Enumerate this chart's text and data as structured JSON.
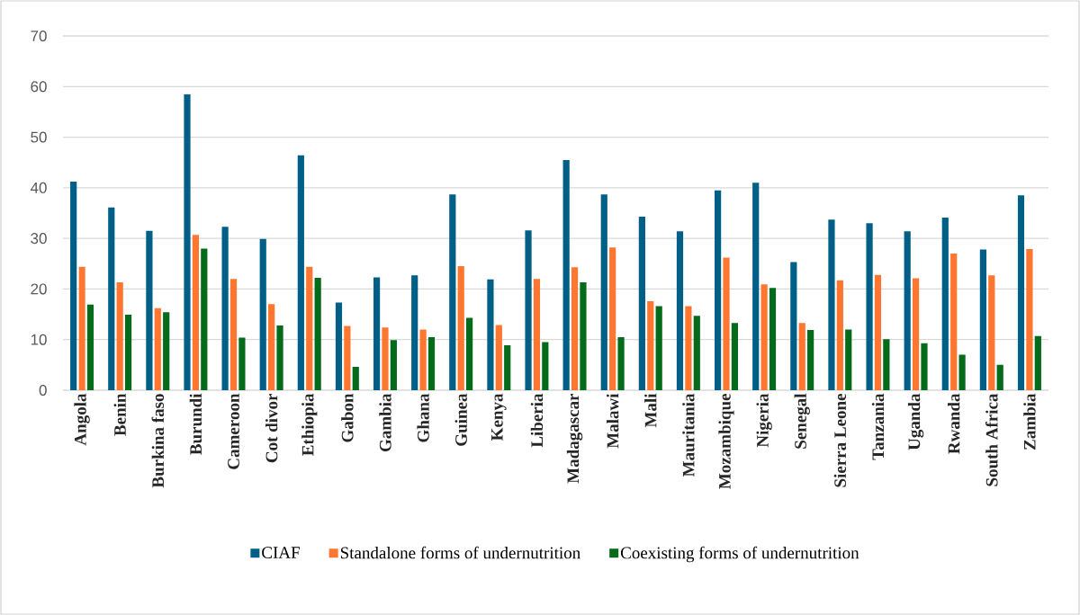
{
  "chart_data": {
    "type": "bar",
    "categories": [
      "Angola",
      "Benin",
      "Burkina faso",
      "Burundi",
      "Cameroon",
      "Cot divor",
      "Ethiopia",
      "Gabon",
      "Gambia",
      "Ghana",
      "Guinea",
      "Kenya",
      "Liberia",
      "Madagascar",
      "Malawi",
      "Mali",
      "Mauritania",
      "Mozambique",
      "Nigeria",
      "Senegal",
      "Sierra Leone",
      "Tanzania",
      "Uganda",
      "Rwanda",
      "South Africa",
      "Zambia"
    ],
    "series": [
      {
        "name": "CIAF",
        "color": "#005f86",
        "values": [
          41.2,
          36.1,
          31.5,
          58.5,
          32.3,
          29.9,
          46.4,
          17.3,
          22.3,
          22.7,
          38.7,
          21.9,
          31.6,
          45.5,
          38.7,
          34.3,
          31.4,
          39.5,
          41.0,
          25.3,
          33.7,
          33.0,
          31.4,
          34.1,
          27.8,
          38.5
        ]
      },
      {
        "name": "Standalone forms of undernutrition",
        "color": "#ff7630",
        "values": [
          24.4,
          21.3,
          16.2,
          30.7,
          22.0,
          17.0,
          24.4,
          12.7,
          12.4,
          12.0,
          24.5,
          12.9,
          22.0,
          24.3,
          28.2,
          17.6,
          16.6,
          26.2,
          20.9,
          13.3,
          21.7,
          22.8,
          22.1,
          27.0,
          22.7,
          27.9
        ]
      },
      {
        "name": "Coexisting forms of undernutrition",
        "color": "#036b1a",
        "values": [
          16.9,
          14.9,
          15.4,
          28.0,
          10.4,
          12.8,
          22.2,
          4.6,
          9.9,
          10.5,
          14.3,
          8.9,
          9.5,
          21.3,
          10.5,
          16.6,
          14.7,
          13.3,
          20.2,
          11.9,
          12.0,
          10.1,
          9.3,
          7.0,
          5.0,
          10.7
        ]
      }
    ],
    "ylim": [
      0,
      70
    ],
    "yticks": [
      0,
      10,
      20,
      30,
      40,
      50,
      60,
      70
    ],
    "grid": "y",
    "legend": "bottom"
  }
}
